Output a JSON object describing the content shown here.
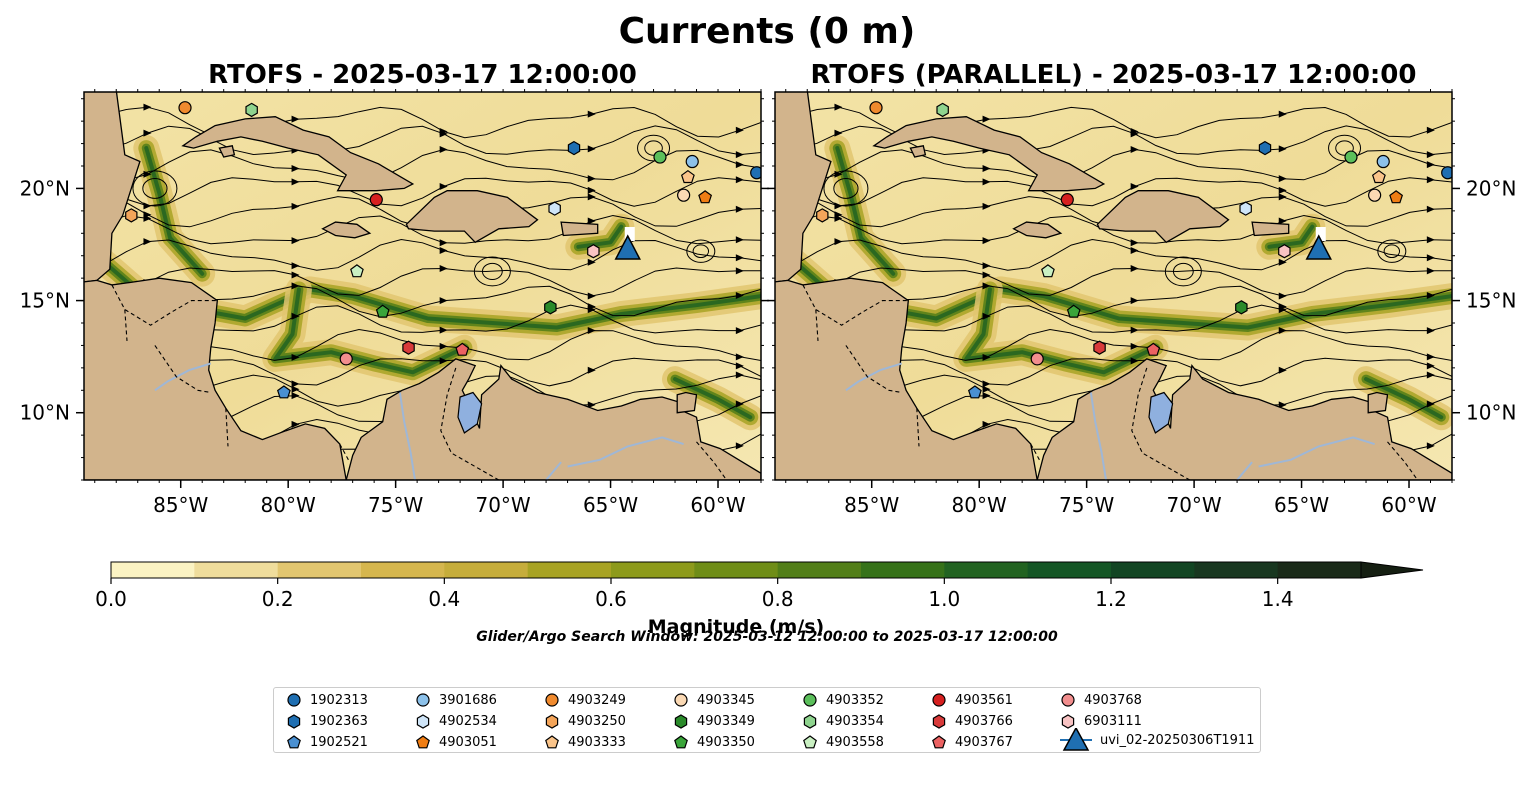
{
  "figure": {
    "title": "Currents (0 m)",
    "subtitle": "Glider/Argo Search Window: 2025-03-12 12:00:00 to 2025-03-17 12:00:00"
  },
  "panels": [
    {
      "title": "RTOFS - 2025-03-17 12:00:00"
    },
    {
      "title": "RTOFS (PARALLEL) - 2025-03-17 12:00:00"
    }
  ],
  "axes": {
    "lon_range": [
      -89.5,
      -58.0
    ],
    "lat_range": [
      7.0,
      24.3
    ],
    "x_ticks": [
      {
        "value": -85,
        "label": "85°W"
      },
      {
        "value": -80,
        "label": "80°W"
      },
      {
        "value": -75,
        "label": "75°W"
      },
      {
        "value": -70,
        "label": "70°W"
      },
      {
        "value": -65,
        "label": "65°W"
      },
      {
        "value": -60,
        "label": "60°W"
      }
    ],
    "y_ticks": [
      {
        "value": 10,
        "label": "10°N"
      },
      {
        "value": 15,
        "label": "15°N"
      },
      {
        "value": 20,
        "label": "20°N"
      }
    ]
  },
  "colorbar": {
    "label": "Magnitude (m/s)",
    "range": [
      0,
      1.5
    ],
    "ticks": [
      {
        "value": 0.0,
        "label": "0.0"
      },
      {
        "value": 0.2,
        "label": "0.2"
      },
      {
        "value": 0.4,
        "label": "0.4"
      },
      {
        "value": 0.6,
        "label": "0.6"
      },
      {
        "value": 0.8,
        "label": "0.8"
      },
      {
        "value": 1.0,
        "label": "1.0"
      },
      {
        "value": 1.2,
        "label": "1.2"
      },
      {
        "value": 1.4,
        "label": "1.4"
      }
    ],
    "colors": [
      "#fbf3c3",
      "#efdd9c",
      "#e2c670",
      "#d5b64e",
      "#c6ad3b",
      "#a8a324",
      "#8d9a1b",
      "#6f8d17",
      "#527e18",
      "#367219",
      "#226321",
      "#145625",
      "#124523",
      "#183720",
      "#1a2a19"
    ]
  },
  "colors": {
    "land": "#d2b48c",
    "lake": "#8fb0df",
    "river": "#9fb7d6",
    "streamline": "#000000",
    "glider": "#1f6fb2"
  },
  "legend": [
    {
      "id": "1902313",
      "marker": "circle",
      "color": "#1f6fb2"
    },
    {
      "id": "1902363",
      "marker": "hexagon",
      "color": "#1f6fb2"
    },
    {
      "id": "1902521",
      "marker": "pentagon",
      "color": "#4a90d2"
    },
    {
      "id": "3901686",
      "marker": "circle",
      "color": "#8cc1ea"
    },
    {
      "id": "4902534",
      "marker": "hexagon",
      "color": "#cfe5f8"
    },
    {
      "id": "4903051",
      "marker": "pentagon",
      "color": "#f07d13"
    },
    {
      "id": "4903249",
      "marker": "circle",
      "color": "#f08a2e"
    },
    {
      "id": "4903250",
      "marker": "hexagon",
      "color": "#f4a55a"
    },
    {
      "id": "4903333",
      "marker": "pentagon",
      "color": "#fac48a"
    },
    {
      "id": "4903345",
      "marker": "circle",
      "color": "#fbd9b4"
    },
    {
      "id": "4903349",
      "marker": "hexagon",
      "color": "#2a8a2a"
    },
    {
      "id": "4903350",
      "marker": "pentagon",
      "color": "#3aa53a"
    },
    {
      "id": "4903352",
      "marker": "circle",
      "color": "#5bbf5b"
    },
    {
      "id": "4903354",
      "marker": "hexagon",
      "color": "#8fd48f"
    },
    {
      "id": "4903558",
      "marker": "pentagon",
      "color": "#c9f0c2"
    },
    {
      "id": "4903561",
      "marker": "circle",
      "color": "#d62020"
    },
    {
      "id": "4903766",
      "marker": "hexagon",
      "color": "#d83a3a"
    },
    {
      "id": "4903767",
      "marker": "pentagon",
      "color": "#ec6262"
    },
    {
      "id": "4903768",
      "marker": "circle",
      "color": "#f28e8e"
    },
    {
      "id": "6903111",
      "marker": "hexagon",
      "color": "#f8c3c3"
    },
    {
      "id": "uvi_02-20250306T1911",
      "marker": "glider",
      "color": "#1f6fb2"
    }
  ],
  "floats_panel1": [
    {
      "id": "1902313",
      "lon": -58.2,
      "lat": 20.7
    },
    {
      "id": "1902363",
      "lon": -66.7,
      "lat": 21.8
    },
    {
      "id": "1902521",
      "lon": -80.2,
      "lat": 10.9
    },
    {
      "id": "3901686",
      "lon": -61.2,
      "lat": 21.2
    },
    {
      "id": "4902534",
      "lon": -67.6,
      "lat": 19.1
    },
    {
      "id": "4903051",
      "lon": -60.6,
      "lat": 19.6
    },
    {
      "id": "4903249",
      "lon": -84.8,
      "lat": 23.6
    },
    {
      "id": "4903250",
      "lon": -87.3,
      "lat": 18.8
    },
    {
      "id": "4903333",
      "lon": -61.4,
      "lat": 20.5
    },
    {
      "id": "4903345",
      "lon": -61.6,
      "lat": 19.7
    },
    {
      "id": "4903349",
      "lon": -67.8,
      "lat": 14.7
    },
    {
      "id": "4903350",
      "lon": -75.6,
      "lat": 14.5
    },
    {
      "id": "4903352",
      "lon": -62.7,
      "lat": 21.4
    },
    {
      "id": "4903354",
      "lon": -81.7,
      "lat": 23.5
    },
    {
      "id": "4903558",
      "lon": -76.8,
      "lat": 16.3
    },
    {
      "id": "4903561",
      "lon": -75.9,
      "lat": 19.5
    },
    {
      "id": "4903766",
      "lon": -74.4,
      "lat": 12.9
    },
    {
      "id": "4903767",
      "lon": -71.9,
      "lat": 12.8
    },
    {
      "id": "4903768",
      "lon": -77.3,
      "lat": 12.4
    },
    {
      "id": "6903111",
      "lon": -65.8,
      "lat": 17.2
    }
  ],
  "floats_panel2": [
    {
      "id": "1902313",
      "lon": -58.2,
      "lat": 20.7
    },
    {
      "id": "1902363",
      "lon": -66.7,
      "lat": 21.8
    },
    {
      "id": "1902521",
      "lon": -80.2,
      "lat": 10.9
    },
    {
      "id": "3901686",
      "lon": -61.2,
      "lat": 21.2
    },
    {
      "id": "4902534",
      "lon": -67.6,
      "lat": 19.1
    },
    {
      "id": "4903051",
      "lon": -60.6,
      "lat": 19.6
    },
    {
      "id": "4903249",
      "lon": -84.8,
      "lat": 23.6
    },
    {
      "id": "4903250",
      "lon": -87.3,
      "lat": 18.8
    },
    {
      "id": "4903333",
      "lon": -61.4,
      "lat": 20.5
    },
    {
      "id": "4903345",
      "lon": -61.6,
      "lat": 19.7
    },
    {
      "id": "4903349",
      "lon": -67.8,
      "lat": 14.7
    },
    {
      "id": "4903350",
      "lon": -75.6,
      "lat": 14.5
    },
    {
      "id": "4903352",
      "lon": -62.7,
      "lat": 21.4
    },
    {
      "id": "4903354",
      "lon": -81.7,
      "lat": 23.5
    },
    {
      "id": "4903558",
      "lon": -76.8,
      "lat": 16.3
    },
    {
      "id": "4903561",
      "lon": -75.9,
      "lat": 19.5
    },
    {
      "id": "4903766",
      "lon": -74.4,
      "lat": 12.9
    },
    {
      "id": "4903767",
      "lon": -71.9,
      "lat": 12.8
    },
    {
      "id": "4903768",
      "lon": -77.3,
      "lat": 12.4
    },
    {
      "id": "6903111",
      "lon": -65.8,
      "lat": 17.2
    }
  ],
  "glider": {
    "id": "uvi_02-20250306T1911",
    "lon": -64.2,
    "lat": 17.3
  }
}
